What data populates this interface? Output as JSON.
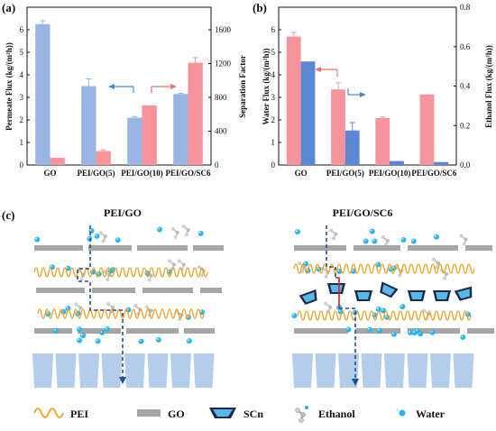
{
  "panels": {
    "a": "(a)",
    "b": "(b)",
    "c": "(c)"
  },
  "chart_data": [
    {
      "type": "bar",
      "categories": [
        "GO",
        "PEI/GO(5)",
        "PEI/GO(10)",
        "PEI/GO/SC6"
      ],
      "ylabel": "Permeate Flux (kg/(m²h))",
      "ylabel_right": "Separation Factor",
      "ylim": [
        0,
        7
      ],
      "ylim_right": [
        0,
        1867
      ],
      "yticks": [
        0,
        1,
        2,
        3,
        4,
        5,
        6
      ],
      "yticks_right": [
        0,
        400,
        800,
        1200,
        1600
      ],
      "series": [
        {
          "axis": "left",
          "color": "#99b5e3",
          "values": [
            6.25,
            3.5,
            2.1,
            3.15
          ],
          "errors": [
            0.15,
            0.32,
            0.05,
            0.03
          ]
        },
        {
          "axis": "right",
          "color": "#f6939d",
          "values": [
            85,
            165,
            705,
            1210
          ],
          "errors": [
            0,
            15,
            0,
            60
          ]
        }
      ]
    },
    {
      "type": "bar",
      "categories": [
        "GO",
        "PEI/GO(5)",
        "PEI/GO(10)",
        "PEI/GO/SC6"
      ],
      "ylabel": "Water Flux (kg/(m²h))",
      "ylabel_right": "Ethanol Flux (kg/(m²h))",
      "ylim": [
        0,
        7
      ],
      "ylim_right": [
        0,
        0.8
      ],
      "yticks": [
        0,
        1,
        2,
        3,
        4,
        5,
        6
      ],
      "yticks_right": [
        0.0,
        0.2,
        0.4,
        0.6,
        0.8
      ],
      "yticklabels_right": [
        "0.0",
        "0.2",
        "0.4",
        "0.6",
        "0.8"
      ],
      "series": [
        {
          "axis": "left",
          "color": "#f6939d",
          "values": [
            5.7,
            3.35,
            2.08,
            3.13
          ],
          "errors": [
            0.18,
            0.3,
            0.05,
            0.0
          ]
        },
        {
          "axis": "right",
          "color": "#5b87d3",
          "values": [
            0.525,
            0.175,
            0.02,
            0.015
          ],
          "errors": [
            0.0,
            0.04,
            0.0,
            0.0
          ]
        }
      ]
    }
  ],
  "diagram": {
    "left_title": "PEI/GO",
    "right_title": "PEI/GO/SC6",
    "legend": {
      "pei": "PEI",
      "go": "GO",
      "scn": "SCn",
      "ethanol": "Ethanol",
      "water": "Water"
    }
  },
  "colors": {
    "pei": "#f0a020",
    "go": "#a6a6a6",
    "water": "#2ab7e8",
    "path": "#1f4e9a",
    "support": "#b3cdea",
    "scn_fill": "#5ab8e8",
    "red_path": "#d92020"
  }
}
